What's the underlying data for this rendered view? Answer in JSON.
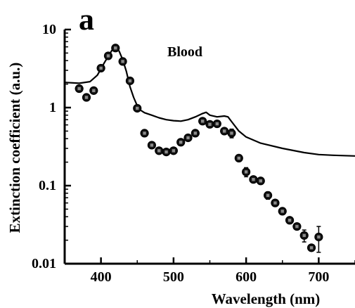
{
  "chart_data": {
    "type": "scatter",
    "panel_label": "a",
    "title": "Blood",
    "xlabel": "Wavelength (nm)",
    "ylabel": "Extinction coefficient (a.u.)",
    "xlim": [
      350,
      750
    ],
    "ylim": [
      0.01,
      10
    ],
    "y_scale": "log",
    "x_ticks": [
      400,
      500,
      600,
      700
    ],
    "x_tick_labels": [
      "400",
      "500",
      "600",
      "700"
    ],
    "y_ticks": [
      0.01,
      0.1,
      1,
      10
    ],
    "y_tick_labels": [
      "0.01",
      "0.1",
      "1",
      "10"
    ],
    "grid": false,
    "series": [
      {
        "kind": "line",
        "color": "#000000",
        "x": [
          350,
          370,
          385,
          395,
          405,
          415,
          420,
          425,
          430,
          435,
          440,
          445,
          450,
          455,
          460,
          470,
          480,
          490,
          500,
          510,
          520,
          530,
          540,
          545,
          550,
          560,
          570,
          575,
          580,
          590,
          600,
          620,
          650,
          680,
          700,
          720,
          750
        ],
        "y": [
          2.1,
          2.05,
          2.15,
          2.6,
          3.8,
          5.4,
          5.9,
          5.3,
          4.1,
          2.9,
          1.85,
          1.35,
          1.05,
          0.92,
          0.86,
          0.8,
          0.74,
          0.7,
          0.68,
          0.67,
          0.7,
          0.76,
          0.84,
          0.87,
          0.8,
          0.76,
          0.78,
          0.76,
          0.66,
          0.5,
          0.42,
          0.35,
          0.3,
          0.265,
          0.25,
          0.245,
          0.24
        ]
      },
      {
        "kind": "points",
        "color": "#000000",
        "x": [
          370,
          380,
          390,
          400,
          410,
          420,
          430,
          440,
          450,
          460,
          470,
          480,
          490,
          500,
          510,
          520,
          530,
          540,
          550,
          560,
          570,
          580,
          590,
          600,
          610,
          620,
          630,
          640,
          650,
          660,
          670,
          680,
          690,
          700
        ],
        "y": [
          1.75,
          1.35,
          1.65,
          3.2,
          4.6,
          5.8,
          3.9,
          2.2,
          0.98,
          0.47,
          0.33,
          0.28,
          0.27,
          0.28,
          0.36,
          0.41,
          0.47,
          0.67,
          0.61,
          0.62,
          0.5,
          0.47,
          0.225,
          0.15,
          0.12,
          0.115,
          0.075,
          0.06,
          0.047,
          0.036,
          0.03,
          0.023,
          0.016,
          0.022
        ],
        "error": [
          0.12,
          0.12,
          0.12,
          0.2,
          0.3,
          0.4,
          0.3,
          0.15,
          0.07,
          0.04,
          0.02,
          0.02,
          0.02,
          0.02,
          0.03,
          0.03,
          0.03,
          0.05,
          0.04,
          0.04,
          0.04,
          0.06,
          0.018,
          0.02,
          0.01,
          0.01,
          0.008,
          0.005,
          0.004,
          0.003,
          0.003,
          0.004,
          0.001,
          0.008
        ]
      }
    ]
  }
}
